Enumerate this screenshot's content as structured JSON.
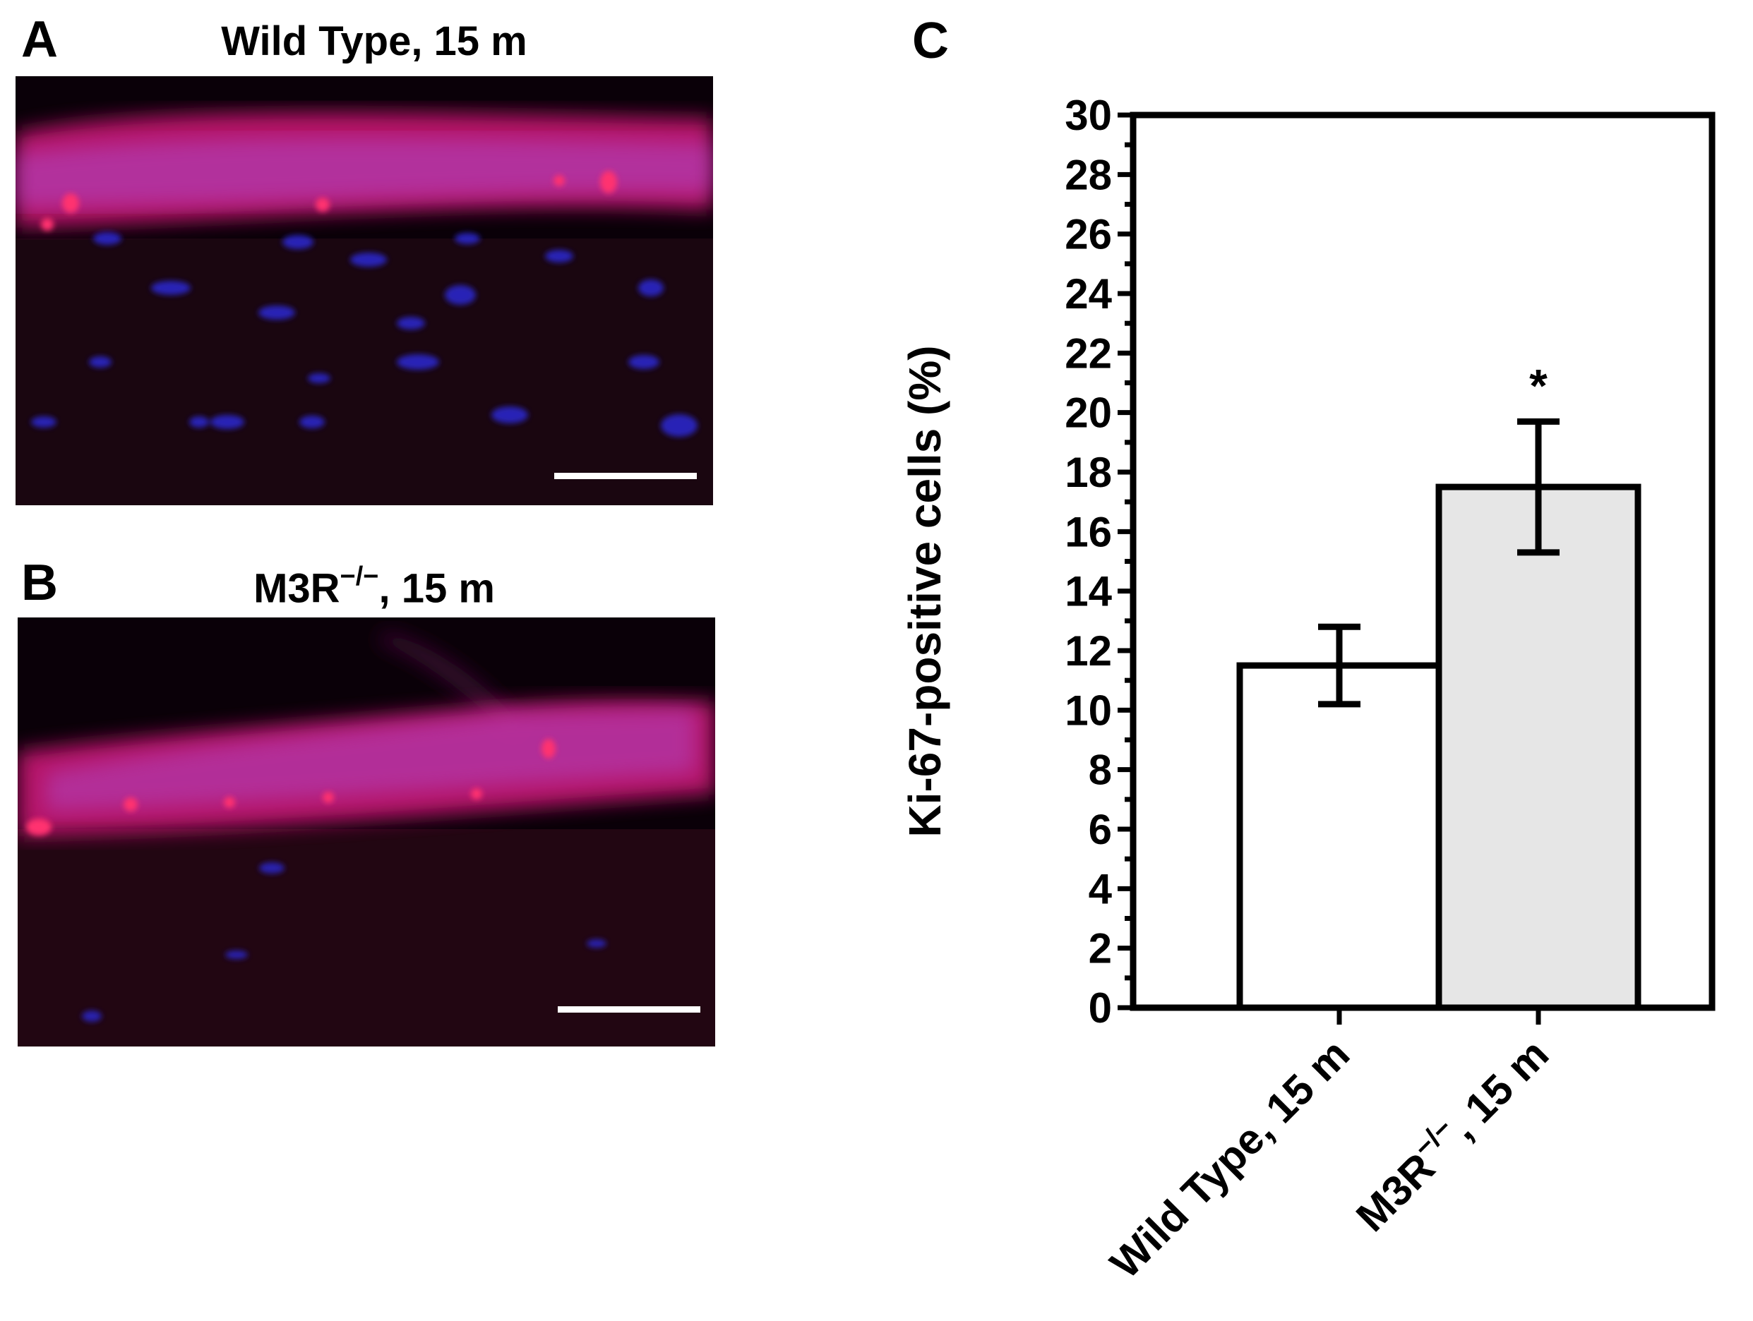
{
  "panels": {
    "a": {
      "letter": "A",
      "title": "Wild Type, 15 m"
    },
    "b": {
      "letter": "B",
      "title_main": "M3R",
      "title_sup": "−/−",
      "title_rest": ", 15 m"
    },
    "c": {
      "letter": "C"
    }
  },
  "colors": {
    "nuclei_stain": "#2a20c8",
    "ki67_stain": "#e0206a",
    "bar_wild_type": "#ffffff",
    "bar_m3r": "#e6e6e6",
    "axis": "#000000"
  },
  "chart_data": {
    "type": "bar",
    "ylabel": "Ki-67-positive cells (%)",
    "ylim": [
      0,
      30
    ],
    "yticks": [
      0,
      2,
      4,
      6,
      8,
      10,
      12,
      14,
      16,
      18,
      20,
      22,
      24,
      26,
      28,
      30
    ],
    "minor_tick_step": 1,
    "categories": [
      "Wild Type, 15 m",
      "M3R−/−, 15 m"
    ],
    "category_labels": [
      {
        "main": "Wild Type, 15 m",
        "sup": ""
      },
      {
        "main": "M3R",
        "sup": "−/−",
        "rest": ", 15 m"
      }
    ],
    "values": [
      11.5,
      17.5
    ],
    "error": [
      1.3,
      2.2
    ],
    "annotations": [
      "",
      "*"
    ],
    "grid": false,
    "legend": "none"
  }
}
